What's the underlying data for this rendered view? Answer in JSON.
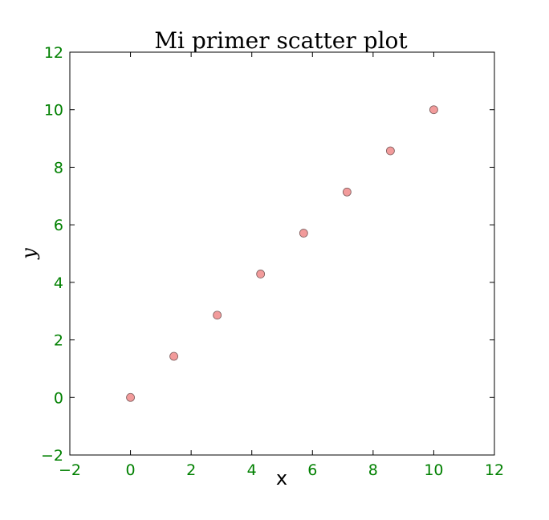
{
  "chart_data": {
    "type": "scatter",
    "title": "Mi primer scatter plot",
    "xlabel": "x",
    "ylabel": "y",
    "xlim": [
      -2,
      12
    ],
    "ylim": [
      -2,
      12
    ],
    "xticks": [
      -2,
      0,
      2,
      4,
      6,
      8,
      10,
      12
    ],
    "yticks": [
      -2,
      0,
      2,
      4,
      6,
      8,
      10,
      12
    ],
    "grid": false,
    "series": [
      {
        "x": [
          0,
          1.43,
          2.86,
          4.29,
          5.71,
          7.14,
          8.57,
          10
        ],
        "y": [
          0,
          1.43,
          2.86,
          4.29,
          5.71,
          7.14,
          8.57,
          10
        ]
      }
    ],
    "colors": {
      "marker_fill": "#f29b9b",
      "marker_edge": "#7a5a5a",
      "tick_label": "#008000",
      "axis": "#000000"
    }
  }
}
